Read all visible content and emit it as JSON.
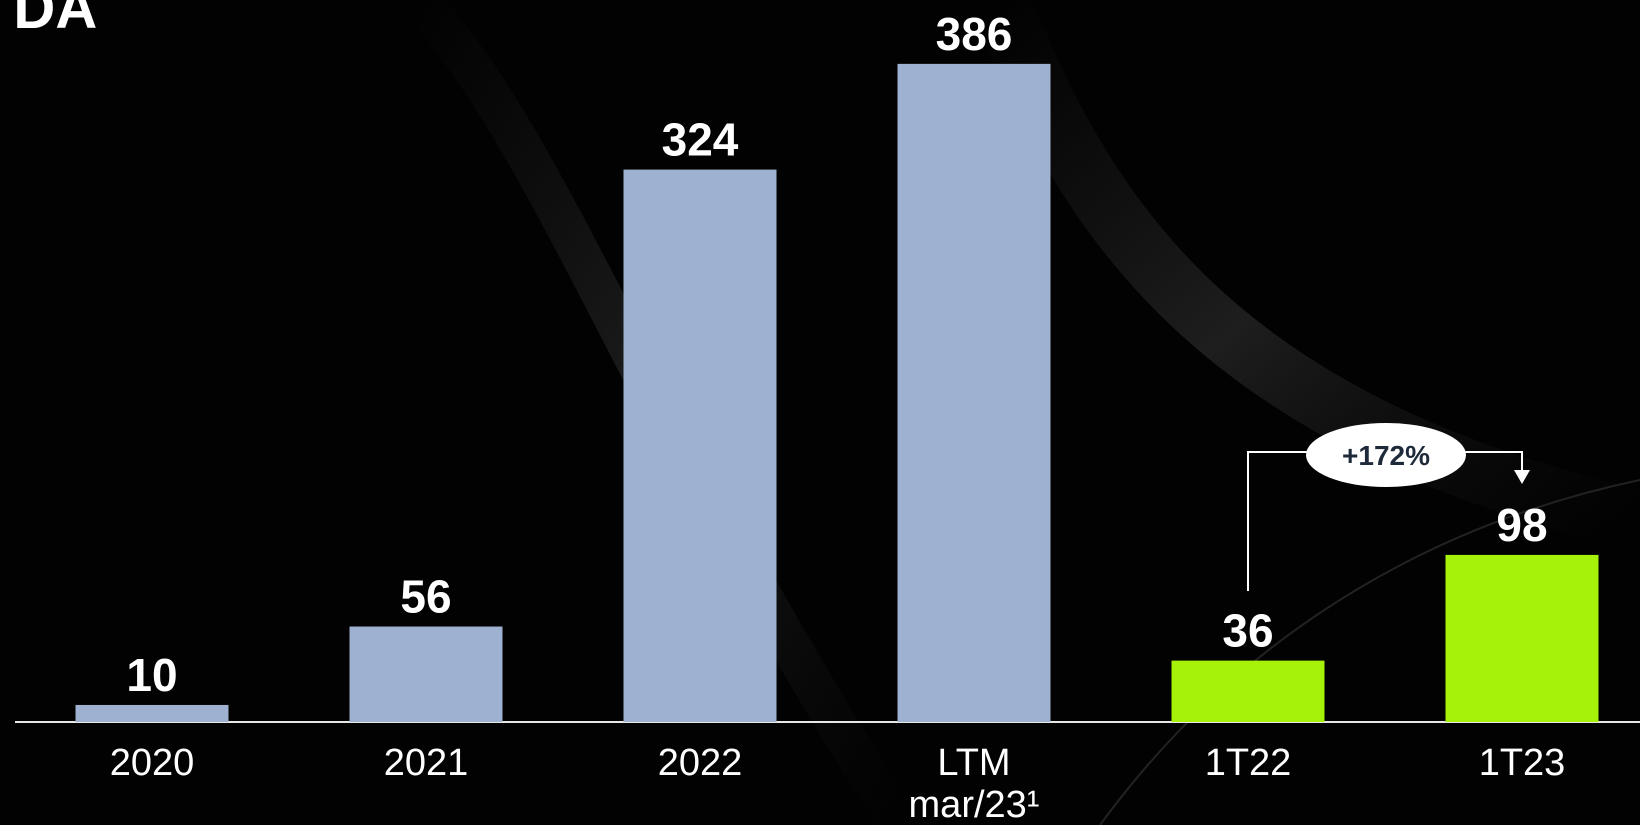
{
  "chart_data": {
    "type": "bar",
    "title": "TDA",
    "categories": [
      "2020",
      "2021",
      "2022",
      "LTM mar/23¹",
      "1T22",
      "1T23"
    ],
    "values": [
      10,
      56,
      324,
      386,
      36,
      98
    ],
    "colors": [
      "#9fb1d0",
      "#9fb1d0",
      "#9fb1d0",
      "#9fb1d0",
      "#a6f20a",
      "#a6f20a"
    ],
    "ylim": [
      0,
      400
    ],
    "annotation": "+172%"
  }
}
